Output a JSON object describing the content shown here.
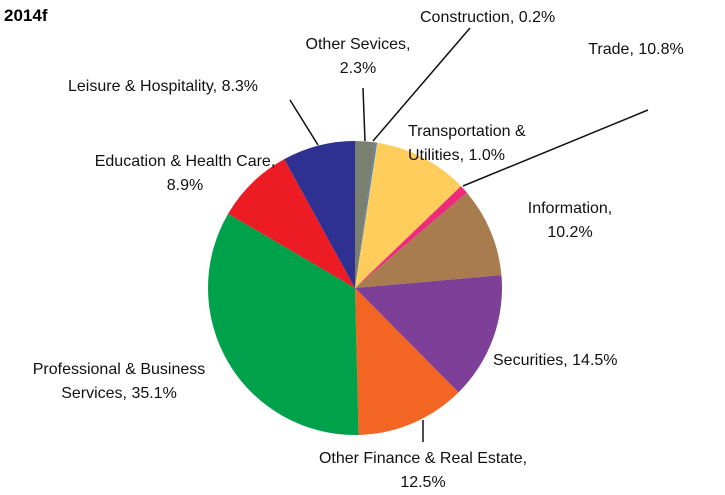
{
  "chart_data": {
    "type": "pie",
    "title": "2014f",
    "categories": [
      "Other Sevices,",
      "Construction,",
      "Trade,",
      "Transportation & Utilities,",
      "Information,",
      "Securities,",
      "Other Finance & Real Estate,",
      "Professional & Business Services,",
      "Education & Health Care,",
      "Leisure & Hospitality,"
    ],
    "values": [
      2.3,
      0.2,
      10.8,
      1.0,
      10.2,
      14.5,
      12.5,
      35.1,
      8.9,
      8.3
    ],
    "value_labels": [
      "2.3%",
      "0.2%",
      "10.8%",
      "1.0%",
      "10.2%",
      "14.5%",
      "12.5%",
      "35.1%",
      "8.9%",
      "8.3%"
    ],
    "colors": [
      "#7a8070",
      "#4f81bd",
      "#ffcd5c",
      "#ee2a7b",
      "#a97c50",
      "#7e3f98",
      "#f26522",
      "#00a14b",
      "#ed1c24",
      "#2e3192"
    ]
  }
}
